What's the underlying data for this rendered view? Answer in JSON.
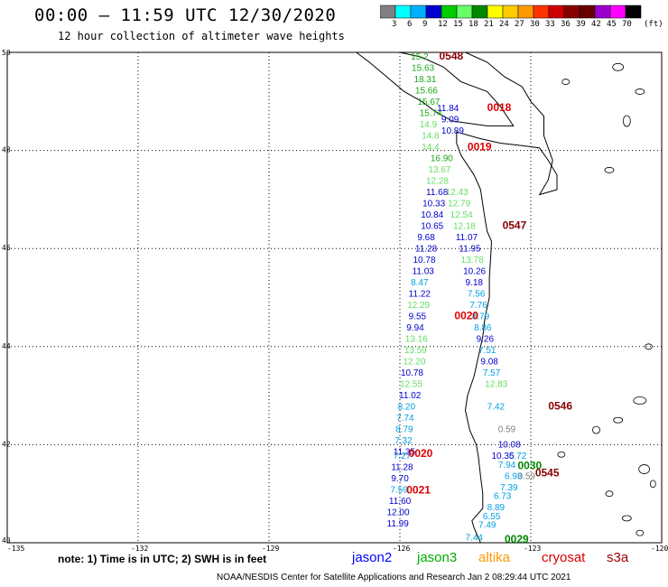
{
  "title": "00:00 – 11:59 UTC 12/30/2020",
  "subtitle": "12 hour collection of altimeter wave heights",
  "colorbar": {
    "unit": "(ft)",
    "colors": [
      "#808080",
      "#00ffff",
      "#00b0ff",
      "#0000cc",
      "#00cc00",
      "#66ff66",
      "#008800",
      "#ffff00",
      "#ffcc00",
      "#ff9900",
      "#ff3300",
      "#cc0000",
      "#880000",
      "#660000",
      "#9900cc",
      "#ff00ff",
      "#000000"
    ],
    "labels": [
      "3",
      "6",
      "9",
      "12",
      "15",
      "18",
      "21",
      "24",
      "27",
      "30",
      "33",
      "36",
      "39",
      "42",
      "45",
      "70"
    ]
  },
  "axes": {
    "lon_labels": [
      "-135",
      "-132",
      "-129",
      "-126",
      "-123",
      "-120"
    ],
    "lat_labels": [
      "50",
      "48",
      "46",
      "44",
      "42",
      "40"
    ]
  },
  "observations": [
    {
      "t": "15.2",
      "c": "#1aa81a",
      "lon": -125.75,
      "lat": 49.85
    },
    {
      "t": "15.63",
      "c": "#1aa81a",
      "lon": -125.73,
      "lat": 49.62
    },
    {
      "t": "18.31",
      "c": "#1aa81a",
      "lon": -125.68,
      "lat": 49.39
    },
    {
      "t": "15.66",
      "c": "#1aa81a",
      "lon": -125.65,
      "lat": 49.16
    },
    {
      "t": "15.67",
      "c": "#1aa81a",
      "lon": -125.6,
      "lat": 48.93
    },
    {
      "t": "15.74",
      "c": "#1aa81a",
      "lon": -125.55,
      "lat": 48.7
    },
    {
      "t": "14.9",
      "c": "#66dd66",
      "lon": -125.55,
      "lat": 48.47
    },
    {
      "t": "14.8",
      "c": "#66dd66",
      "lon": -125.5,
      "lat": 48.24
    },
    {
      "t": "14.4",
      "c": "#66dd66",
      "lon": -125.5,
      "lat": 48.01
    },
    {
      "t": "16.90",
      "c": "#1aa81a",
      "lon": -125.3,
      "lat": 47.78
    },
    {
      "t": "13.67",
      "c": "#66dd66",
      "lon": -125.35,
      "lat": 47.55
    },
    {
      "t": "12.28",
      "c": "#66dd66",
      "lon": -125.4,
      "lat": 47.32
    },
    {
      "t": "11.68",
      "c": "#0000cc",
      "lon": -125.4,
      "lat": 47.09
    },
    {
      "t": "10.33",
      "c": "#0000cc",
      "lon": -125.48,
      "lat": 46.86
    },
    {
      "t": "10.84",
      "c": "#0000cc",
      "lon": -125.52,
      "lat": 46.63
    },
    {
      "t": "10.65",
      "c": "#0000cc",
      "lon": -125.52,
      "lat": 46.4
    },
    {
      "t": "9.68",
      "c": "#0000cc",
      "lon": -125.6,
      "lat": 46.17
    },
    {
      "t": "11.28",
      "c": "#0000cc",
      "lon": -125.65,
      "lat": 45.94
    },
    {
      "t": "10.78",
      "c": "#0000cc",
      "lon": -125.7,
      "lat": 45.71
    },
    {
      "t": "11.03",
      "c": "#0000cc",
      "lon": -125.72,
      "lat": 45.48
    },
    {
      "t": "8.47",
      "c": "#00a0e0",
      "lon": -125.75,
      "lat": 45.25
    },
    {
      "t": "11.22",
      "c": "#0000cc",
      "lon": -125.8,
      "lat": 45.02
    },
    {
      "t": "12.29",
      "c": "#66dd66",
      "lon": -125.83,
      "lat": 44.79
    },
    {
      "t": "9.55",
      "c": "#0000cc",
      "lon": -125.8,
      "lat": 44.56
    },
    {
      "t": "9.94",
      "c": "#0000cc",
      "lon": -125.85,
      "lat": 44.33
    },
    {
      "t": "13.16",
      "c": "#66dd66",
      "lon": -125.88,
      "lat": 44.1
    },
    {
      "t": "13.59",
      "c": "#66dd66",
      "lon": -125.9,
      "lat": 43.87
    },
    {
      "t": "12.20",
      "c": "#66dd66",
      "lon": -125.93,
      "lat": 43.64
    },
    {
      "t": "10.78",
      "c": "#0000cc",
      "lon": -125.98,
      "lat": 43.41
    },
    {
      "t": "12.55",
      "c": "#66dd66",
      "lon": -126.0,
      "lat": 43.18
    },
    {
      "t": "11.02",
      "c": "#0000cc",
      "lon": -126.02,
      "lat": 42.95
    },
    {
      "t": "8.20",
      "c": "#00a0e0",
      "lon": -126.05,
      "lat": 42.72
    },
    {
      "t": "7.74",
      "c": "#00a0e0",
      "lon": -126.08,
      "lat": 42.49
    },
    {
      "t": "8.79",
      "c": "#00a0e0",
      "lon": -126.1,
      "lat": 42.26
    },
    {
      "t": "7.32",
      "c": "#00a0e0",
      "lon": -126.12,
      "lat": 42.03
    },
    {
      "t": "11.35",
      "c": "#0000cc",
      "lon": -126.15,
      "lat": 41.8
    },
    {
      "t": "7.27",
      "c": "#00a0e0",
      "lon": -126.15,
      "lat": 41.71
    },
    {
      "t": "11.28",
      "c": "#0000cc",
      "lon": -126.2,
      "lat": 41.48
    },
    {
      "t": "9.70",
      "c": "#0000cc",
      "lon": -126.2,
      "lat": 41.25
    },
    {
      "t": "7.59",
      "c": "#00a0e0",
      "lon": -126.22,
      "lat": 41.02
    },
    {
      "t": "11.60",
      "c": "#0000cc",
      "lon": -126.25,
      "lat": 40.79
    },
    {
      "t": "12.00",
      "c": "#0000cc",
      "lon": -126.3,
      "lat": 40.56
    },
    {
      "t": "11.99",
      "c": "#0000cc",
      "lon": -126.3,
      "lat": 40.33
    },
    {
      "t": "11.84",
      "c": "#0000cc",
      "lon": -125.15,
      "lat": 48.8
    },
    {
      "t": "9.09",
      "c": "#0000cc",
      "lon": -125.05,
      "lat": 48.57
    },
    {
      "t": "10.89",
      "c": "#0000cc",
      "lon": -125.05,
      "lat": 48.34
    },
    {
      "t": "12.43",
      "c": "#66dd66",
      "lon": -124.95,
      "lat": 47.09
    },
    {
      "t": "12.79",
      "c": "#66dd66",
      "lon": -124.9,
      "lat": 46.86
    },
    {
      "t": "12.54",
      "c": "#66dd66",
      "lon": -124.85,
      "lat": 46.63
    },
    {
      "t": "12.18",
      "c": "#66dd66",
      "lon": -124.78,
      "lat": 46.4
    },
    {
      "t": "11.07",
      "c": "#0000cc",
      "lon": -124.72,
      "lat": 46.17
    },
    {
      "t": "11.95",
      "c": "#0000cc",
      "lon": -124.65,
      "lat": 45.94
    },
    {
      "t": "13.78",
      "c": "#66dd66",
      "lon": -124.6,
      "lat": 45.71
    },
    {
      "t": "10.26",
      "c": "#0000cc",
      "lon": -124.55,
      "lat": 45.48
    },
    {
      "t": "9.18",
      "c": "#0000cc",
      "lon": -124.5,
      "lat": 45.25
    },
    {
      "t": "7.56",
      "c": "#00a0e0",
      "lon": -124.45,
      "lat": 45.02
    },
    {
      "t": "7.76",
      "c": "#00a0e0",
      "lon": -124.4,
      "lat": 44.79
    },
    {
      "t": "8.79",
      "c": "#00a0e0",
      "lon": -124.35,
      "lat": 44.56
    },
    {
      "t": "8.86",
      "c": "#00a0e0",
      "lon": -124.3,
      "lat": 44.33
    },
    {
      "t": "9.26",
      "c": "#0000cc",
      "lon": -124.25,
      "lat": 44.1
    },
    {
      "t": "7.51",
      "c": "#00a0e0",
      "lon": -124.2,
      "lat": 43.87
    },
    {
      "t": "9.08",
      "c": "#0000cc",
      "lon": -124.15,
      "lat": 43.64
    },
    {
      "t": "7.57",
      "c": "#00a0e0",
      "lon": -124.1,
      "lat": 43.41
    },
    {
      "t": "12.83",
      "c": "#66dd66",
      "lon": -124.05,
      "lat": 43.18
    },
    {
      "t": "7.42",
      "c": "#00a0e0",
      "lon": -124.0,
      "lat": 42.72
    },
    {
      "t": "0.59",
      "c": "#808080",
      "lon": -123.75,
      "lat": 42.26
    },
    {
      "t": "10.08",
      "c": "#0000cc",
      "lon": -123.75,
      "lat": 41.94
    },
    {
      "t": "6.72",
      "c": "#00a0e0",
      "lon": -123.5,
      "lat": 41.71
    },
    {
      "t": "10.35",
      "c": "#0000cc",
      "lon": -123.9,
      "lat": 41.71
    },
    {
      "t": "7.94",
      "c": "#00a0e0",
      "lon": -123.75,
      "lat": 41.53
    },
    {
      "t": "0.59",
      "c": "#808080",
      "lon": -123.3,
      "lat": 41.3
    },
    {
      "t": "6.93",
      "c": "#00a0e0",
      "lon": -123.6,
      "lat": 41.3
    },
    {
      "t": "7.39",
      "c": "#00a0e0",
      "lon": -123.7,
      "lat": 41.07
    },
    {
      "t": "6.73",
      "c": "#00a0e0",
      "lon": -123.85,
      "lat": 40.89
    },
    {
      "t": "8.89",
      "c": "#00a0e0",
      "lon": -124.0,
      "lat": 40.66
    },
    {
      "t": "6.55",
      "c": "#00a0e0",
      "lon": -124.1,
      "lat": 40.48
    },
    {
      "t": "7.49",
      "c": "#00a0e0",
      "lon": -124.2,
      "lat": 40.3
    },
    {
      "t": "7.44",
      "c": "#00a0e0",
      "lon": -124.5,
      "lat": 40.05
    }
  ],
  "timestamps": [
    {
      "t": "0548",
      "c": "#880000",
      "lon": -125.1,
      "lat": 49.85
    },
    {
      "t": "0018",
      "c": "#dd0000",
      "lon": -124.0,
      "lat": 48.8
    },
    {
      "t": "0019",
      "c": "#dd0000",
      "lon": -124.45,
      "lat": 48.0
    },
    {
      "t": "0547",
      "c": "#880000",
      "lon": -123.65,
      "lat": 46.4
    },
    {
      "t": "0020",
      "c": "#dd0000",
      "lon": -124.75,
      "lat": 44.56
    },
    {
      "t": "0546",
      "c": "#880000",
      "lon": -122.6,
      "lat": 42.72
    },
    {
      "t": "0030",
      "c": "#008800",
      "lon": -123.3,
      "lat": 41.5
    },
    {
      "t": "0545",
      "c": "#880000",
      "lon": -122.9,
      "lat": 41.35
    },
    {
      "t": "0020",
      "c": "#dd0000",
      "lon": -125.8,
      "lat": 41.75
    },
    {
      "t": "0021",
      "c": "#dd0000",
      "lon": -125.85,
      "lat": 41.0
    },
    {
      "t": "0029",
      "c": "#008800",
      "lon": -123.6,
      "lat": 40.0
    }
  ],
  "note": "note: 1) Time is in UTC; 2) SWH is in feet",
  "legend": [
    {
      "label": "jason2",
      "color": "#0000ff"
    },
    {
      "label": "jason3",
      "color": "#00aa00"
    },
    {
      "label": "altika",
      "color": "#ff9900"
    },
    {
      "label": "cryosat",
      "color": "#dd0000"
    },
    {
      "label": "s3a",
      "color": "#990000"
    }
  ],
  "footer": "NOAA/NESDIS Center for Satellite Applications and Research   Jan  2 08:29:44 UTC 2021"
}
